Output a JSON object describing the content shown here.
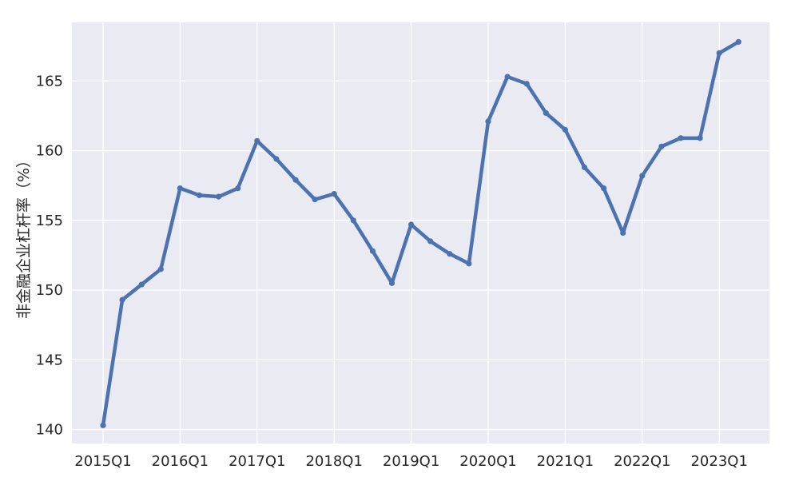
{
  "chart_data": {
    "type": "line",
    "title": "",
    "xlabel": "",
    "ylabel": "非金融企业杠杆率（%）",
    "x": [
      "2015Q1",
      "2015Q2",
      "2015Q3",
      "2015Q4",
      "2016Q1",
      "2016Q2",
      "2016Q3",
      "2016Q4",
      "2017Q1",
      "2017Q2",
      "2017Q3",
      "2017Q4",
      "2018Q1",
      "2018Q2",
      "2018Q3",
      "2018Q4",
      "2019Q1",
      "2019Q2",
      "2019Q3",
      "2019Q4",
      "2020Q1",
      "2020Q2",
      "2020Q3",
      "2020Q4",
      "2021Q1",
      "2021Q2",
      "2021Q3",
      "2021Q4",
      "2022Q1",
      "2022Q2",
      "2022Q3",
      "2022Q4",
      "2023Q1",
      "2023Q2"
    ],
    "series": [
      {
        "values": [
          140.3,
          149.3,
          150.4,
          151.5,
          157.3,
          156.8,
          156.7,
          157.3,
          160.7,
          159.4,
          157.9,
          156.5,
          156.9,
          155.0,
          152.8,
          150.5,
          154.7,
          153.5,
          152.6,
          151.9,
          162.1,
          165.3,
          164.8,
          162.7,
          161.5,
          158.8,
          157.3,
          154.1,
          158.2,
          160.3,
          160.9,
          160.9,
          167.0,
          167.8
        ],
        "color": "#4c72b0"
      }
    ],
    "xticks": [
      "2015Q1",
      "2016Q1",
      "2017Q1",
      "2018Q1",
      "2019Q1",
      "2020Q1",
      "2021Q1",
      "2022Q1",
      "2023Q1"
    ],
    "yticks": [
      140,
      145,
      150,
      155,
      160,
      165
    ],
    "ylim": [
      139,
      169.2
    ],
    "grid": true,
    "style": {
      "background": "#eaeaf2",
      "grid_color": "#ffffff",
      "line_color": "#4c72b0",
      "text_color": "#262626"
    }
  }
}
